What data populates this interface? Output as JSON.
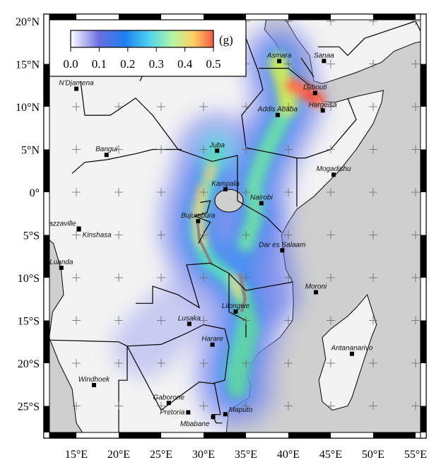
{
  "legend": {
    "unit": "(g)",
    "ticks": [
      "0.0",
      "0.1",
      "0.2",
      "0.3",
      "0.4",
      "0.5"
    ],
    "range": [
      0.0,
      0.5
    ],
    "colormap": [
      "#ffffff",
      "#6a6ee0",
      "#1e7ef0",
      "#4fd2ee",
      "#b8f5a0",
      "#ffd060",
      "#f86b50"
    ]
  },
  "axes": {
    "lon_labels": [
      "15°E",
      "20°E",
      "25°E",
      "30°E",
      "35°E",
      "40°E",
      "45°E",
      "50°E",
      "55°E"
    ],
    "lat_labels": [
      "20°N",
      "15°N",
      "10°N",
      "5°N",
      "0°",
      "5°S",
      "10°S",
      "15°S",
      "20°S",
      "25°S"
    ]
  },
  "cities": [
    "N'Djamena",
    "Bangui",
    "Juba",
    "Asmara",
    "Sanaa",
    "Djibouti",
    "Hargeisa",
    "Addis Ababa",
    "Mogadishu",
    "Kampala",
    "Nairobi",
    "Bujumbura",
    "Brazzaville",
    "Kinshasa",
    "Dar es Salaam",
    "Luanda",
    "Moroni",
    "Lilongwe",
    "Lusaka",
    "Harare",
    "Antananarivo",
    "Windhoek",
    "Gaborone",
    "Pretoria",
    "Maputo",
    "Mbabane"
  ],
  "colors": {
    "ocean": "#cfcfcf",
    "land": "#f4f4f4",
    "border": "#000000"
  }
}
